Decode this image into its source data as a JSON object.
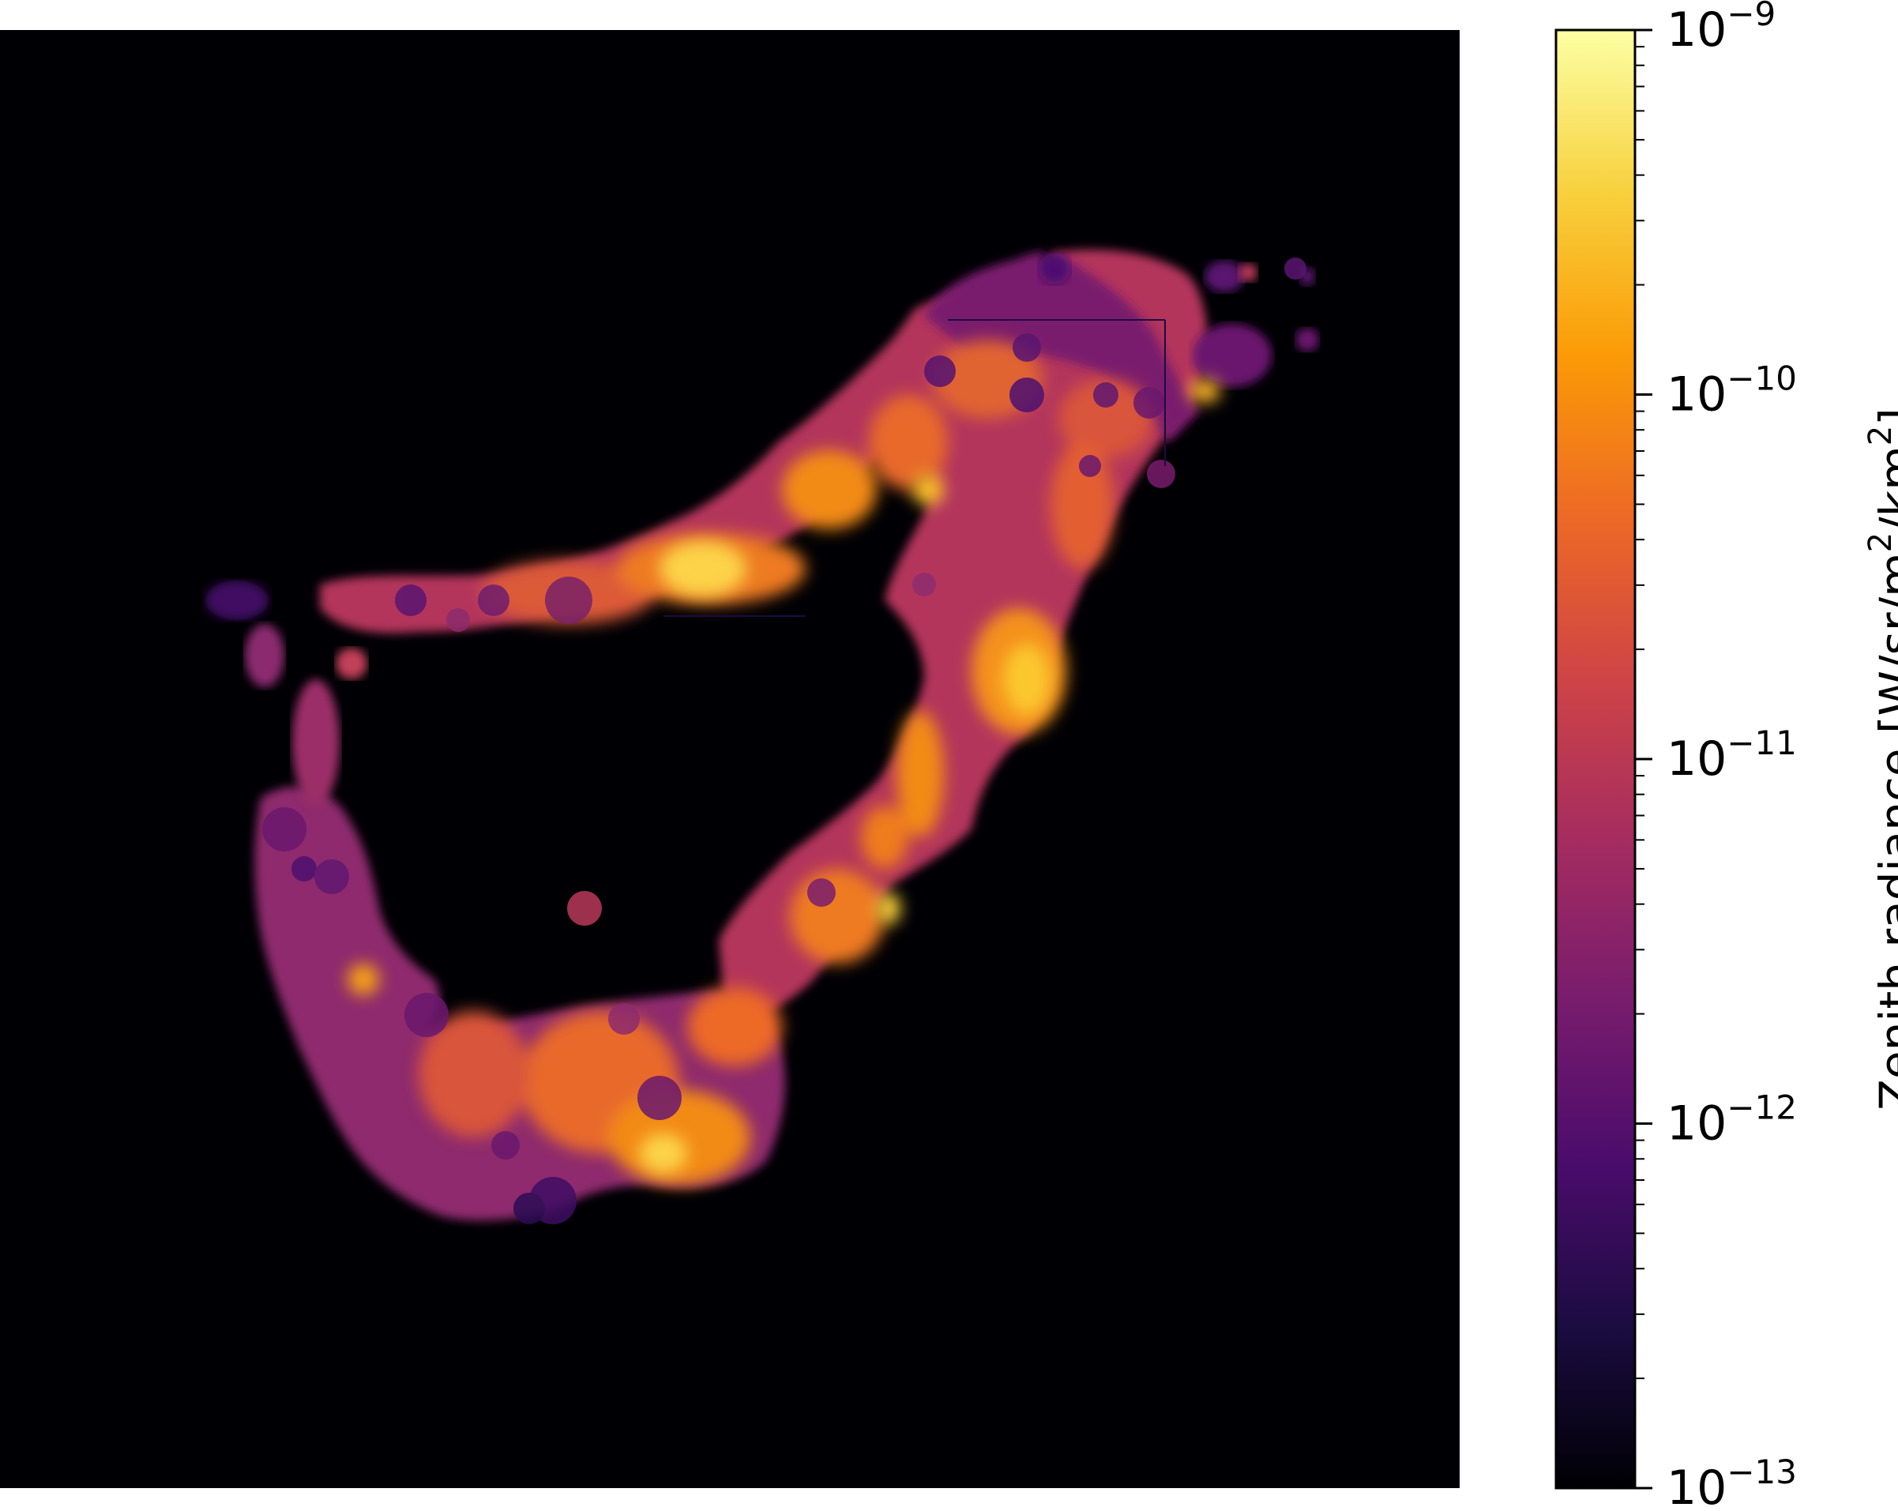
{
  "chart_data": {
    "type": "heatmap",
    "title": "",
    "xlabel": "",
    "ylabel": "",
    "background_color": "#000004",
    "colormap": "inferno",
    "colormap_stops": [
      "#000004",
      "#1b0c41",
      "#4a0c6b",
      "#781c6d",
      "#a52c60",
      "#cf4446",
      "#ed6925",
      "#fb9b06",
      "#f7d13d",
      "#fcffa4"
    ],
    "scale": "log",
    "range": [
      1e-13,
      1e-09
    ],
    "colorbar": {
      "label_main": "Zenith radiance [W/sr/m",
      "label_sup1": "2",
      "label_mid": "/km",
      "label_sup2": "2",
      "label_end": "]",
      "ticks": [
        {
          "value": 1e-09,
          "base": "10",
          "exp": "−9"
        },
        {
          "value": 1e-10,
          "base": "10",
          "exp": "−10"
        },
        {
          "value": 1e-11,
          "base": "10",
          "exp": "−11"
        },
        {
          "value": 1e-12,
          "base": "10",
          "exp": "−12"
        },
        {
          "value": 1e-13,
          "base": "10",
          "exp": "−13"
        }
      ]
    },
    "hotspots": [
      {
        "value": 9e-10
      },
      {
        "value": 6e-10
      },
      {
        "value": 5e-10
      },
      {
        "value": 4e-10
      },
      {
        "value": 3e-10
      }
    ]
  }
}
